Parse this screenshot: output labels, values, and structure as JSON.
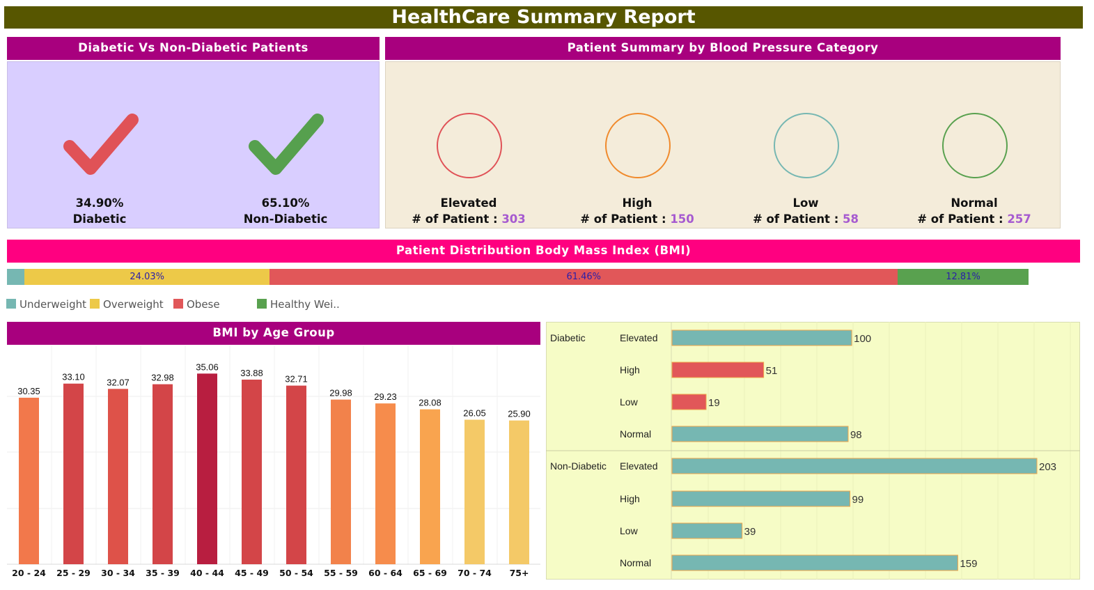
{
  "title": "HealthCare Summary Report",
  "diabetic_panel": {
    "title": "Diabetic Vs Non-Diabetic Patients",
    "items": [
      {
        "value": "34.90%",
        "label": "Diabetic",
        "color": "#e05257"
      },
      {
        "value": "65.10%",
        "label": "Non-Diabetic",
        "color": "#56a04e"
      }
    ]
  },
  "bp_panel": {
    "title": "Patient Summary by Blood Pressure Category",
    "count_prefix": "# of Patient :",
    "items": [
      {
        "label": "Elevated",
        "count": "303",
        "color": "#e05257"
      },
      {
        "label": "High",
        "count": "150",
        "color": "#f08a2c"
      },
      {
        "label": "Low",
        "count": "58",
        "color": "#76b7b2"
      },
      {
        "label": "Normal",
        "count": "257",
        "color": "#59a14f"
      }
    ]
  },
  "bmi_panel": {
    "title": "Patient Distribution Body Mass Index (BMI)",
    "segments": [
      {
        "name": "Underweight",
        "share": 1.7,
        "label": "",
        "color": "#76b7b2"
      },
      {
        "name": "Overweight",
        "share": 24.03,
        "label": "24.03%",
        "color": "#edc948"
      },
      {
        "name": "Obese",
        "share": 61.46,
        "label": "61.46%",
        "color": "#e15759"
      },
      {
        "name": "Healthy Wei..",
        "share": 12.81,
        "label": "12.81%",
        "color": "#59a14f"
      }
    ]
  },
  "age_panel": {
    "title": "BMI by Age Group"
  },
  "chart_data": [
    {
      "type": "bar",
      "categories": [
        "20 - 24",
        "25 - 29",
        "30 - 34",
        "35 - 39",
        "40 - 44",
        "45 - 49",
        "50 - 54",
        "55 - 59",
        "60 - 64",
        "65 - 69",
        "70 - 74",
        "75+"
      ],
      "values": [
        30.35,
        33.1,
        32.07,
        32.98,
        35.06,
        33.88,
        32.71,
        29.98,
        29.23,
        28.08,
        26.05,
        25.9
      ],
      "labels": [
        "30.35",
        "33.10",
        "32.07",
        "32.98",
        "35.06",
        "33.88",
        "32.71",
        "29.98",
        "29.23",
        "28.08",
        "26.05",
        "25.90"
      ],
      "colors": [
        "#f2784b",
        "#d34548",
        "#de5249",
        "#d34548",
        "#b81e40",
        "#d34548",
        "#d34548",
        "#f2824b",
        "#f68c4c",
        "#f9a44f",
        "#f4c967",
        "#f4c967"
      ],
      "ylim": [
        0,
        36
      ],
      "grid": true
    },
    {
      "type": "bar",
      "orientation": "horizontal",
      "groups": [
        {
          "name": "Diabetic",
          "rows": [
            {
              "category": "Elevated",
              "value": 100,
              "color": "#76b7b2"
            },
            {
              "category": "High",
              "value": 51,
              "color": "#e15759"
            },
            {
              "category": "Low",
              "value": 19,
              "color": "#e15759"
            },
            {
              "category": "Normal",
              "value": 98,
              "color": "#76b7b2"
            }
          ]
        },
        {
          "name": "Non-Diabetic",
          "rows": [
            {
              "category": "Elevated",
              "value": 203,
              "color": "#76b7b2"
            },
            {
              "category": "High",
              "value": 99,
              "color": "#76b7b2"
            },
            {
              "category": "Low",
              "value": 39,
              "color": "#76b7b2"
            },
            {
              "category": "Normal",
              "value": 159,
              "color": "#76b7b2"
            }
          ]
        }
      ],
      "xlim": [
        0,
        225
      ]
    }
  ]
}
